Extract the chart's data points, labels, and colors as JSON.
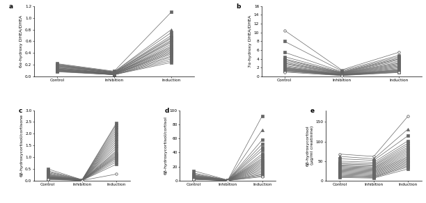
{
  "panels": [
    {
      "label": "a",
      "ylabel": "6α-hydroxy DHEA/DHEA",
      "ylim": [
        0.0,
        1.2
      ],
      "yticks": [
        0.0,
        0.2,
        0.4,
        0.6,
        0.8,
        1.0,
        1.2
      ],
      "control": [
        0.22,
        0.21,
        0.2,
        0.2,
        0.19,
        0.18,
        0.18,
        0.17,
        0.16,
        0.15,
        0.15,
        0.14,
        0.13,
        0.13,
        0.12,
        0.12,
        0.11,
        0.11,
        0.1,
        0.1,
        0.09,
        0.09,
        0.08
      ],
      "inhibition": [
        0.09,
        0.08,
        0.08,
        0.07,
        0.07,
        0.07,
        0.06,
        0.06,
        0.06,
        0.05,
        0.05,
        0.05,
        0.05,
        0.05,
        0.04,
        0.04,
        0.04,
        0.04,
        0.04,
        0.03,
        0.03,
        0.03,
        0.03
      ],
      "induction": [
        1.1,
        0.8,
        0.75,
        0.7,
        0.67,
        0.65,
        0.62,
        0.6,
        0.58,
        0.55,
        0.52,
        0.5,
        0.48,
        0.46,
        0.44,
        0.42,
        0.4,
        0.38,
        0.35,
        0.33,
        0.3,
        0.27,
        0.24
      ],
      "markers": [
        "s",
        "^",
        "s",
        "s",
        "s",
        "s",
        "s",
        "s",
        "s",
        "s",
        "s",
        "s",
        "s",
        "s",
        "s",
        "s",
        "s",
        "s",
        "s",
        "s",
        "s",
        "s",
        "s"
      ]
    },
    {
      "label": "b",
      "ylabel": "7α-hydroxy DHEA/DHEA",
      "ylim": [
        0,
        16
      ],
      "yticks": [
        0,
        2,
        4,
        6,
        8,
        10,
        12,
        14,
        16
      ],
      "control": [
        10.5,
        8.0,
        5.5,
        4.5,
        4.0,
        3.8,
        3.5,
        3.2,
        3.0,
        2.8,
        2.5,
        2.3,
        2.1,
        2.0,
        1.9,
        1.8,
        1.7,
        1.6,
        1.5,
        1.4,
        1.3,
        1.2,
        1.0
      ],
      "inhibition": [
        1.5,
        1.3,
        1.1,
        1.0,
        0.9,
        0.85,
        0.8,
        0.75,
        0.7,
        0.65,
        0.6,
        0.55,
        0.5,
        0.45,
        0.42,
        0.4,
        0.38,
        0.35,
        0.32,
        0.3,
        0.28,
        0.25,
        0.2
      ],
      "induction": [
        5.5,
        4.8,
        4.5,
        4.2,
        4.0,
        3.8,
        3.5,
        3.2,
        3.0,
        2.8,
        2.6,
        2.4,
        2.2,
        2.0,
        1.8,
        1.6,
        1.5,
        1.4,
        1.3,
        1.2,
        1.1,
        1.0,
        0.9
      ],
      "markers": [
        "o",
        "s",
        "s",
        "s",
        "s",
        "s",
        "s",
        "s",
        "s",
        "s",
        "s",
        "s",
        "s",
        "s",
        "s",
        "s",
        "s",
        "s",
        "s",
        "s",
        "s",
        "s",
        "o"
      ]
    },
    {
      "label": "c",
      "ylabel": "6β-hydroxycortisol/cortisone",
      "ylim": [
        0.0,
        3.0
      ],
      "yticks": [
        0.0,
        0.5,
        1.0,
        1.5,
        2.0,
        2.5,
        3.0
      ],
      "control": [
        0.5,
        0.42,
        0.38,
        0.34,
        0.3,
        0.27,
        0.25,
        0.23,
        0.21,
        0.19,
        0.18,
        0.17,
        0.16,
        0.15,
        0.14,
        0.13,
        0.12,
        0.11,
        0.1,
        0.09,
        0.08,
        0.07,
        0.05
      ],
      "inhibition": [
        0.04,
        0.04,
        0.03,
        0.03,
        0.03,
        0.03,
        0.02,
        0.02,
        0.02,
        0.02,
        0.02,
        0.02,
        0.01,
        0.01,
        0.01,
        0.01,
        0.01,
        0.01,
        0.01,
        0.01,
        0.01,
        0.01,
        0.01
      ],
      "induction": [
        2.45,
        2.38,
        2.28,
        2.18,
        2.08,
        1.98,
        1.88,
        1.78,
        1.68,
        1.58,
        1.48,
        1.38,
        1.28,
        1.22,
        1.16,
        1.1,
        1.05,
        1.0,
        0.95,
        0.88,
        0.8,
        0.7,
        0.28
      ],
      "markers": [
        "s",
        "s",
        "s",
        "s",
        "s",
        "s",
        "s",
        "s",
        "s",
        "s",
        "s",
        "s",
        "s",
        "^",
        "s",
        "s",
        "s",
        "s",
        "s",
        "s",
        "s",
        "s",
        "o"
      ]
    },
    {
      "label": "d",
      "ylabel": "6β-hydroxycortisol/cortisol",
      "ylim": [
        0,
        100
      ],
      "yticks": [
        0,
        20,
        40,
        60,
        80,
        100
      ],
      "control": [
        14.0,
        11.0,
        9.5,
        8.5,
        7.8,
        7.2,
        6.8,
        6.3,
        5.8,
        5.4,
        5.0,
        4.6,
        4.3,
        4.0,
        3.8,
        3.5,
        3.2,
        3.0,
        2.8,
        2.5,
        2.2,
        2.0,
        1.8
      ],
      "inhibition": [
        0.9,
        0.8,
        0.75,
        0.7,
        0.65,
        0.6,
        0.55,
        0.5,
        0.48,
        0.45,
        0.42,
        0.4,
        0.38,
        0.35,
        0.32,
        0.3,
        0.28,
        0.25,
        0.22,
        0.2,
        0.18,
        0.15,
        0.12
      ],
      "induction": [
        92.0,
        72.0,
        58.0,
        52.0,
        47.0,
        43.0,
        38.0,
        35.0,
        32.0,
        30.0,
        28.0,
        26.0,
        24.0,
        22.0,
        20.0,
        18.0,
        16.0,
        14.0,
        12.0,
        10.0,
        8.5,
        7.0,
        5.5
      ],
      "markers": [
        "s",
        "^",
        "s",
        "s",
        "s",
        "s",
        "s",
        "s",
        "s",
        "s",
        "s",
        "s",
        "s",
        "s",
        "s",
        "s",
        "s",
        "s",
        "s",
        "s",
        "s",
        "s",
        "o"
      ]
    },
    {
      "label": "e",
      "ylabel": "6β-hydroxycortisol\n(μg/ml creatinine)",
      "ylim": [
        0,
        180
      ],
      "yticks": [
        0,
        50,
        100,
        150
      ],
      "control": [
        68.0,
        62.0,
        56.0,
        50.0,
        46.0,
        43.0,
        40.0,
        38.0,
        36.0,
        34.0,
        32.0,
        30.0,
        28.0,
        26.0,
        24.0,
        22.0,
        20.0,
        18.0,
        16.0,
        14.0,
        12.0,
        10.0,
        8.0
      ],
      "inhibition": [
        62.0,
        56.0,
        52.0,
        47.0,
        43.0,
        40.0,
        38.0,
        35.0,
        33.0,
        31.0,
        29.0,
        27.0,
        25.0,
        23.0,
        21.0,
        19.0,
        17.0,
        15.0,
        13.0,
        11.0,
        9.5,
        8.0,
        6.5
      ],
      "induction": [
        165.0,
        132.0,
        115.0,
        102.0,
        96.0,
        91.0,
        86.0,
        82.0,
        78.0,
        74.0,
        70.0,
        66.0,
        62.0,
        59.0,
        56.0,
        53.0,
        50.0,
        47.0,
        44.0,
        41.0,
        38.0,
        35.0,
        30.0
      ],
      "markers": [
        "o",
        "^",
        "s",
        "s",
        "s",
        "s",
        "s",
        "s",
        "s",
        "s",
        "s",
        "s",
        "s",
        "s",
        "s",
        "s",
        "s",
        "s",
        "s",
        "s",
        "s",
        "s",
        "s"
      ]
    }
  ],
  "x_labels": [
    "Control",
    "Inhibition",
    "Induction"
  ],
  "line_color": "#666666",
  "marker_size": 2.5,
  "line_width": 0.5,
  "label_font_size": 4.5,
  "tick_font_size": 4.2,
  "panel_label_size": 6.5
}
